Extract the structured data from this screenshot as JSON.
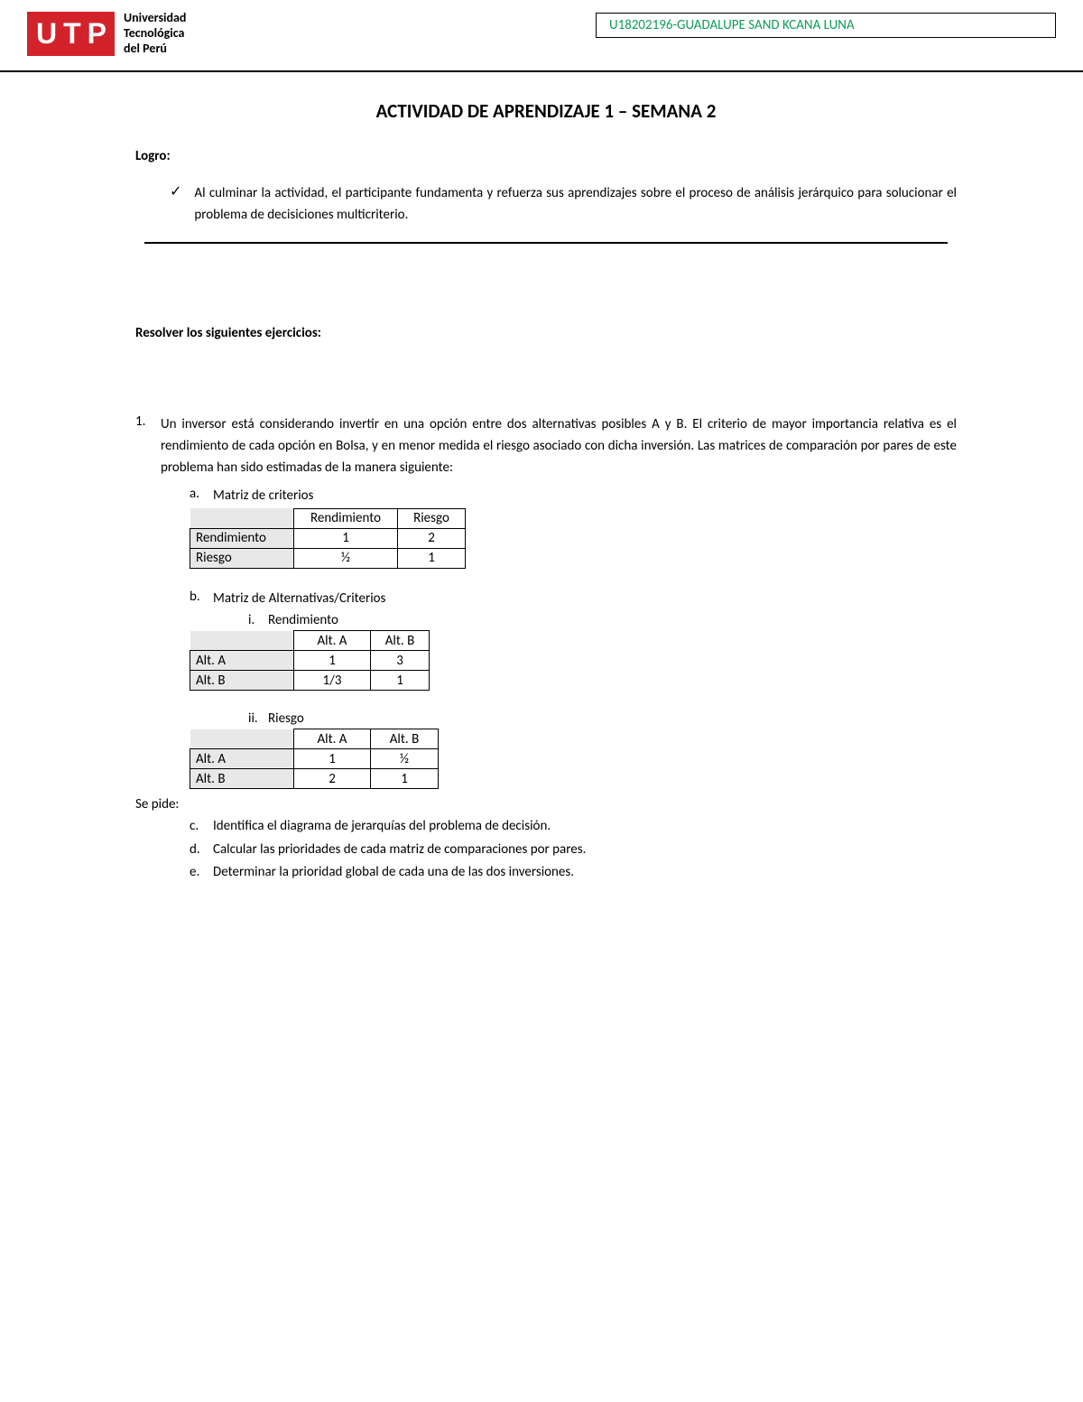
{
  "header": {
    "logo_letters": [
      "U",
      "T",
      "P"
    ],
    "university_line1": "Universidad",
    "university_line2": "Tecnológica",
    "university_line3": "del Perú",
    "student_info": "U18202196-GUADALUPE SAND KCANA LUNA",
    "accent_color": "#d2232a",
    "student_color": "#0f9d58"
  },
  "title": "ACTIVIDAD DE APRENDIZAJE 1 – SEMANA 2",
  "logro": {
    "label": "Logro:",
    "text": "Al culminar la actividad, el participante fundamenta y refuerza sus aprendizajes sobre el proceso de análisis jerárquico para solucionar el problema de decisiciones multicriterio."
  },
  "resolver_label": "Resolver los siguientes ejercicios:",
  "exercise1": {
    "number": "1.",
    "text": "Un inversor está considerando invertir en una opción entre dos alternativas posibles A y B. El criterio de mayor importancia relativa es el rendimiento de cada opción en Bolsa, y en menor medida el riesgo asociado con dicha inversión. Las matrices de comparación por pares de este problema han sido estimadas de la manera siguiente:",
    "item_a": {
      "letter": "a.",
      "label": "Matriz de criterios",
      "table": {
        "headers": [
          "",
          "Rendimiento",
          "Riesgo"
        ],
        "rows": [
          [
            "Rendimiento",
            "1",
            "2"
          ],
          [
            "Riesgo",
            "½",
            "1"
          ]
        ]
      }
    },
    "item_b": {
      "letter": "b.",
      "label": "Matriz de Alternativas/Criterios",
      "sub_i": {
        "letter": "i.",
        "label": "Rendimiento",
        "table": {
          "headers": [
            "",
            "Alt. A",
            "Alt. B"
          ],
          "rows": [
            [
              "Alt. A",
              "1",
              "3"
            ],
            [
              "Alt. B",
              "1/3",
              "1"
            ]
          ]
        }
      },
      "sub_ii": {
        "letter": "ii.",
        "label": "Riesgo",
        "table": {
          "headers": [
            "",
            "Alt. A",
            "Alt. B"
          ],
          "rows": [
            [
              "Alt. A",
              "1",
              "½"
            ],
            [
              "Alt. B",
              "2",
              "1"
            ]
          ]
        }
      }
    },
    "se_pide": "Se pide:",
    "item_c": {
      "letter": "c.",
      "text": "Identifica el diagrama de jerarquías del problema de decisión."
    },
    "item_d": {
      "letter": "d.",
      "text": "Calcular las prioridades de cada matriz de comparaciones por pares."
    },
    "item_e": {
      "letter": "e.",
      "text": "Determinar la prioridad global de cada una de las dos inversiones."
    }
  }
}
